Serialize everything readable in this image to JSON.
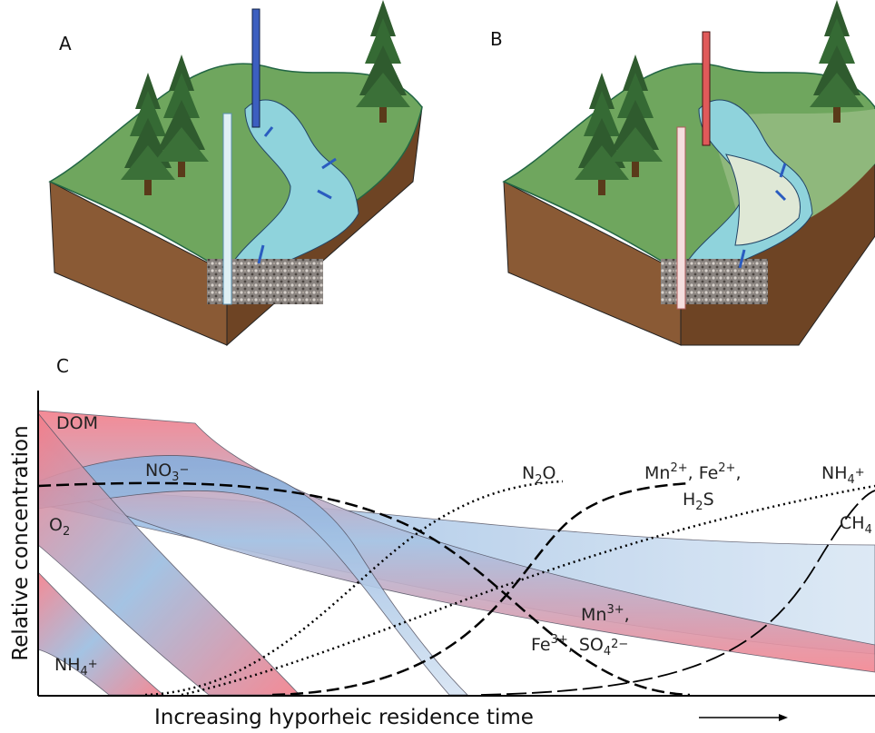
{
  "panels": {
    "a": "A",
    "b": "B",
    "c": "C"
  },
  "y_axis_label": "Relative concentration",
  "x_axis_label": "Increasing hyporheic residence time",
  "curve_labels": [
    [
      {
        "text": "DOM"
      }
    ],
    [
      {
        "text": "NO"
      },
      {
        "sub": "3"
      },
      {
        "sup": "−"
      }
    ],
    [
      {
        "text": "O"
      },
      {
        "sub": "2"
      }
    ],
    [
      {
        "text": "NH"
      },
      {
        "sub": "4"
      },
      {
        "sup": "+"
      }
    ],
    [
      {
        "text": "N"
      },
      {
        "sub": "2"
      },
      {
        "text": "O"
      }
    ],
    [
      {
        "text": "Mn"
      },
      {
        "sup": "2+"
      },
      {
        "text": ", Fe"
      },
      {
        "sup": "2+"
      },
      {
        "text": ","
      }
    ],
    [
      {
        "text": "H"
      },
      {
        "sub": "2"
      },
      {
        "text": "S"
      }
    ],
    [
      {
        "text": "NH"
      },
      {
        "sub": "4"
      },
      {
        "sup": "+"
      }
    ],
    [
      {
        "text": "CH"
      },
      {
        "sub": "4"
      }
    ],
    [
      {
        "text": "Mn"
      },
      {
        "sup": "3+"
      },
      {
        "text": ","
      }
    ],
    [
      {
        "text": "Fe"
      },
      {
        "sup": "3+"
      },
      {
        "text": ", SO"
      },
      {
        "sub": "4"
      },
      {
        "sup": "2−"
      }
    ]
  ]
}
